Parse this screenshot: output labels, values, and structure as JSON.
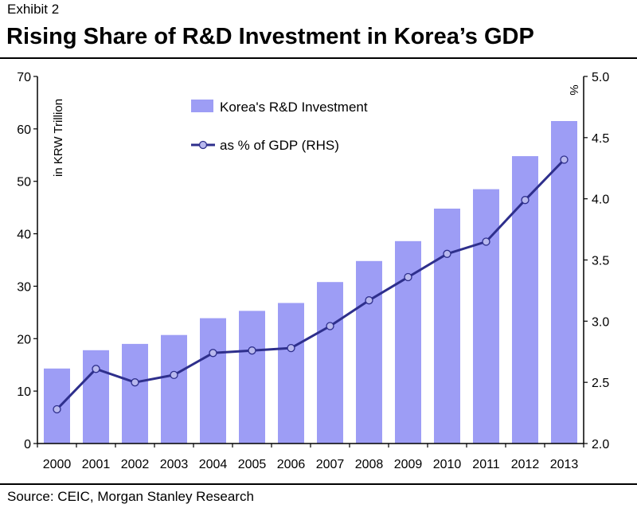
{
  "header": {
    "exhibit": "Exhibit 2",
    "title": "Rising Share of R&D Investment in Korea’s GDP"
  },
  "footer": {
    "source": "Source: CEIC, Morgan Stanley Research"
  },
  "colors": {
    "bar": "#9d9df5",
    "line": "#2e2f8c",
    "axis": "#000000"
  },
  "chart_data": {
    "type": "bar+line",
    "categories": [
      "2000",
      "2001",
      "2002",
      "2003",
      "2004",
      "2005",
      "2006",
      "2007",
      "2008",
      "2009",
      "2010",
      "2011",
      "2012",
      "2013"
    ],
    "series": [
      {
        "name": "Korea's R&D Investment",
        "type": "bar",
        "axis": "left",
        "values": [
          14.3,
          17.8,
          19.0,
          20.7,
          23.9,
          25.3,
          26.8,
          30.8,
          34.8,
          38.6,
          44.8,
          48.5,
          54.8,
          61.5
        ]
      },
      {
        "name": "as % of GDP (RHS)",
        "type": "line",
        "axis": "right",
        "values": [
          2.28,
          2.61,
          2.5,
          2.56,
          2.74,
          2.76,
          2.78,
          2.96,
          3.17,
          3.36,
          3.55,
          3.65,
          3.99,
          4.32
        ]
      }
    ],
    "y_left": {
      "label": "in KRW Trillion",
      "ylim": [
        0,
        70
      ],
      "ticks": [
        "0",
        "10",
        "20",
        "30",
        "40",
        "50",
        "60",
        "70"
      ]
    },
    "y_right": {
      "label": "%",
      "ylim": [
        2.0,
        5.0
      ],
      "ticks": [
        "2.0",
        "2.5",
        "3.0",
        "3.5",
        "4.0",
        "4.5",
        "5.0"
      ]
    },
    "legend": {
      "position": "top-left",
      "bar_label": "Korea's R&D Investment",
      "line_label": "as % of GDP (RHS)"
    },
    "grid": false
  }
}
